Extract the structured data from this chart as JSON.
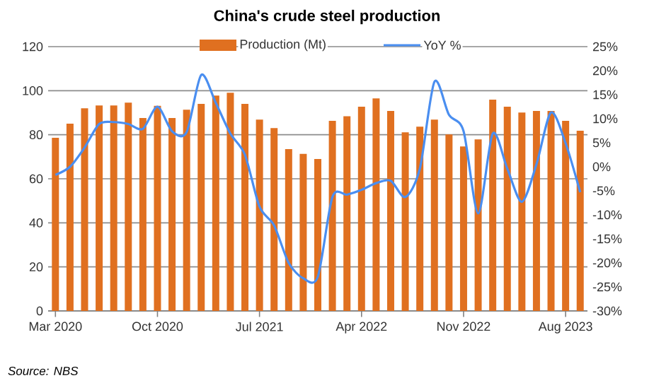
{
  "chart_data": {
    "type": "bar",
    "title": "China's crude steel production",
    "categories": [
      "Mar 2020",
      null,
      null,
      null,
      null,
      null,
      null,
      "Oct 2020",
      null,
      null,
      null,
      null,
      null,
      null,
      "Jul 2021",
      null,
      null,
      null,
      null,
      null,
      null,
      "Apr 2022",
      null,
      null,
      null,
      null,
      null,
      null,
      "Nov 2022",
      null,
      null,
      null,
      null,
      null,
      null,
      "Aug 2023",
      null
    ],
    "series": [
      {
        "name": "Production (Mt)",
        "color": "#e07020",
        "values": [
          78.6,
          85.0,
          92.0,
          93.3,
          93.3,
          94.6,
          87.6,
          93.1,
          87.6,
          91.4,
          94.0,
          97.8,
          99.1,
          94.0,
          86.9,
          83.0,
          73.5,
          71.3,
          69.0,
          86.3,
          88.4,
          92.7,
          96.5,
          90.8,
          81.1,
          83.7,
          86.9,
          80.1,
          74.7,
          77.9,
          95.9,
          92.7,
          90.1,
          90.8,
          90.8,
          86.3,
          81.8
        ]
      },
      {
        "name": "YoY %",
        "type": "line",
        "axis": "y2",
        "color": "#4a8ef0",
        "values": [
          -1.7,
          0.0,
          4.0,
          8.9,
          9.3,
          8.9,
          7.9,
          12.5,
          7.4,
          7.2,
          19.1,
          13.3,
          6.9,
          2.5,
          -8.3,
          -12.2,
          -20.0,
          -23.2,
          -22.9,
          -6.3,
          -5.8,
          -4.8,
          -3.4,
          -2.9,
          -6.3,
          -0.4,
          17.7,
          10.8,
          7.4,
          -9.7,
          6.9,
          -0.4,
          -7.3,
          0.5,
          11.3,
          4.9,
          -5.3
        ]
      }
    ],
    "ylim": [
      0,
      120
    ],
    "yticks": [
      0,
      20,
      40,
      60,
      80,
      100,
      120
    ],
    "y2lim": [
      -30,
      25
    ],
    "y2ticks": [
      {
        "value": -30,
        "label": "-30%"
      },
      {
        "value": -25,
        "label": "-25%"
      },
      {
        "value": -20,
        "label": "-20%"
      },
      {
        "value": -15,
        "label": "-15%"
      },
      {
        "value": -10,
        "label": "-10%"
      },
      {
        "value": -5,
        "label": "-5%"
      },
      {
        "value": 0,
        "label": "0%"
      },
      {
        "value": 5,
        "label": "5%"
      },
      {
        "value": 10,
        "label": "10%"
      },
      {
        "value": 15,
        "label": "15%"
      },
      {
        "value": 20,
        "label": "20%"
      },
      {
        "value": 25,
        "label": "25%"
      }
    ],
    "grid": "y",
    "legend": "top",
    "annotations": [
      "Source: NBS"
    ]
  }
}
